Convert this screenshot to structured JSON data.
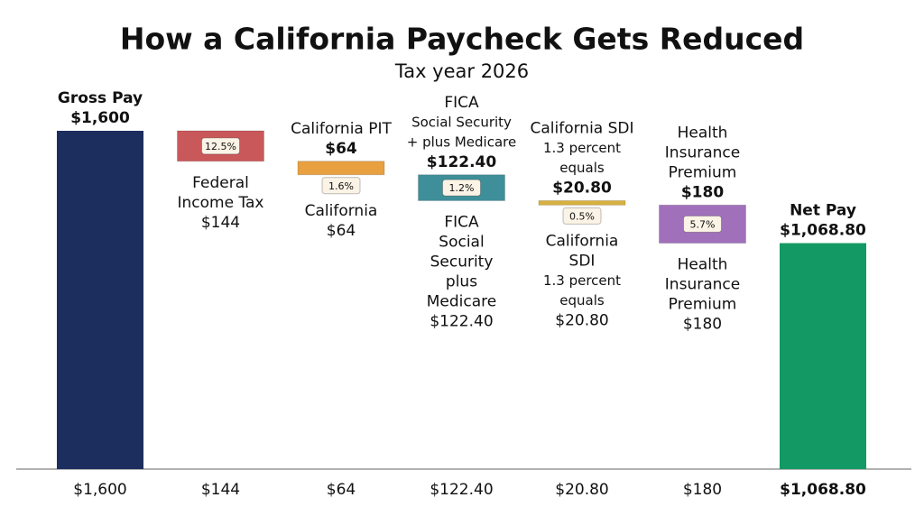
{
  "chart_data": {
    "type": "waterfall",
    "title": "How a California Paycheck Gets Reduced",
    "subtitle": "Tax year 2026",
    "values": [
      1600,
      144,
      64,
      122.4,
      20.8,
      180,
      1068.8
    ],
    "value_labels": [
      "$1,600",
      "$144",
      "$64",
      "$122.40",
      "$20.80",
      "$180",
      "$1,068.80"
    ],
    "colors": [
      "#1c2e5e",
      "#c9585a",
      "#e8a040",
      "#3f8f9a",
      "#d8b040",
      "#a070bb",
      "#139a64"
    ],
    "badges": [
      null,
      "12.5%",
      "1.6%",
      "1.2%",
      "0.5%",
      "5.7%",
      null
    ],
    "labels_above": [
      [
        "Gross Pay",
        "$1,600"
      ],
      [],
      [
        "California PIT",
        "$64"
      ],
      [
        "FICA",
        "Social Security",
        "+ plus Medicare",
        "$122.40"
      ],
      [
        "California SDI",
        "1.3 percent",
        "equals",
        "$20.80"
      ],
      [
        "Health",
        "Insurance",
        "Premium",
        "$180"
      ],
      [
        "Net Pay",
        "$1,068.80"
      ]
    ],
    "labels_below": [
      [],
      [
        "Federal",
        "Income Tax",
        "$144"
      ],
      [
        "California",
        "$64"
      ],
      [
        "FICA",
        "Social",
        "Security",
        "plus",
        "Medicare",
        "$122.40"
      ],
      [
        "California",
        "SDI",
        "1.3 percent",
        "equals",
        "$20.80"
      ],
      [
        "Health",
        "Insurance",
        "Premium",
        "$180"
      ],
      []
    ]
  }
}
